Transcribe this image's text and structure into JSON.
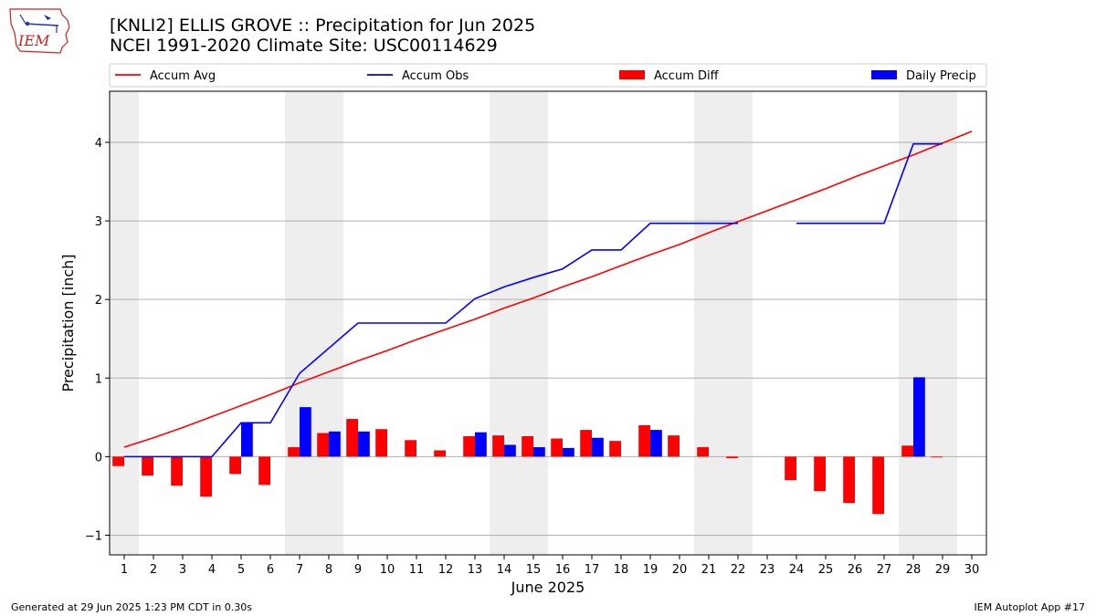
{
  "header": {
    "title": "[KNLI2] ELLIS GROVE :: Precipitation for Jun 2025",
    "subtitle": "NCEI 1991-2020 Climate Site: USC00114629"
  },
  "logo": {
    "text": "IEM",
    "icon": "iem-iowa-logo"
  },
  "footer": {
    "generated": "Generated at 29 Jun 2025 1:23 PM CDT in 0.30s",
    "app": "IEM Autoplot App #17"
  },
  "colors": {
    "avg": "#ff0000",
    "obs": "#0000ff",
    "diff": "#ff0000",
    "daily": "#0000ff",
    "weekend_band": "#eeeeee",
    "grid": "#b0b0b0"
  },
  "chart_data": {
    "type": "bar",
    "xlabel": "June 2025",
    "ylabel": "Precipitation [inch]",
    "ylim": [
      -1.25,
      4.65
    ],
    "yticks": [
      -1,
      0,
      1,
      2,
      3,
      4
    ],
    "xlim": [
      0.5,
      30.5
    ],
    "days": [
      1,
      2,
      3,
      4,
      5,
      6,
      7,
      8,
      9,
      10,
      11,
      12,
      13,
      14,
      15,
      16,
      17,
      18,
      19,
      20,
      21,
      22,
      23,
      24,
      25,
      26,
      27,
      28,
      29,
      30
    ],
    "weekend_bands": [
      [
        0.5,
        1.5
      ],
      [
        6.5,
        8.5
      ],
      [
        13.5,
        15.5
      ],
      [
        20.5,
        22.5
      ],
      [
        27.5,
        29.5
      ]
    ],
    "grid": "horizontal",
    "legend_placement": "top",
    "legend": [
      {
        "label": "Accum Avg",
        "kind": "line",
        "color": "#ff0000"
      },
      {
        "label": "Accum Obs",
        "kind": "line",
        "color": "#0000ff"
      },
      {
        "label": "Accum Diff",
        "kind": "bar",
        "color": "#ff0000"
      },
      {
        "label": "Daily Precip",
        "kind": "bar",
        "color": "#0000ff"
      }
    ],
    "series": [
      {
        "name": "Accum Avg",
        "type": "line",
        "values": [
          0.12,
          0.24,
          0.37,
          0.51,
          0.65,
          0.79,
          0.94,
          1.08,
          1.22,
          1.35,
          1.49,
          1.62,
          1.75,
          1.89,
          2.02,
          2.16,
          2.29,
          2.43,
          2.57,
          2.7,
          2.85,
          2.99,
          3.13,
          3.27,
          3.41,
          3.56,
          3.7,
          3.84,
          3.99,
          4.14
        ]
      },
      {
        "name": "Accum Obs",
        "type": "line",
        "values": [
          0,
          0,
          0,
          0,
          0.43,
          0.43,
          1.06,
          1.38,
          1.7,
          1.7,
          1.7,
          1.7,
          2.01,
          2.16,
          2.28,
          2.39,
          2.63,
          2.63,
          2.97,
          2.97,
          2.97,
          2.97,
          null,
          2.97,
          2.97,
          2.97,
          2.97,
          3.98,
          3.98,
          null
        ]
      },
      {
        "name": "Accum Diff",
        "type": "bar",
        "values": [
          -0.12,
          -0.24,
          -0.37,
          -0.51,
          -0.22,
          -0.36,
          0.12,
          0.3,
          0.48,
          0.35,
          0.21,
          0.08,
          0.26,
          0.27,
          0.26,
          0.23,
          0.34,
          0.2,
          0.4,
          0.27,
          0.12,
          -0.02,
          null,
          -0.3,
          -0.44,
          -0.59,
          -0.73,
          0.14,
          -0.01,
          null
        ]
      },
      {
        "name": "Daily Precip",
        "type": "bar",
        "values": [
          0,
          0,
          0,
          0,
          0.43,
          0,
          0.63,
          0.32,
          0.32,
          0,
          0,
          0,
          0.31,
          0.15,
          0.12,
          0.11,
          0.24,
          0,
          0.34,
          0,
          0,
          0,
          null,
          0,
          0,
          0,
          0,
          1.01,
          0,
          null
        ]
      }
    ]
  }
}
